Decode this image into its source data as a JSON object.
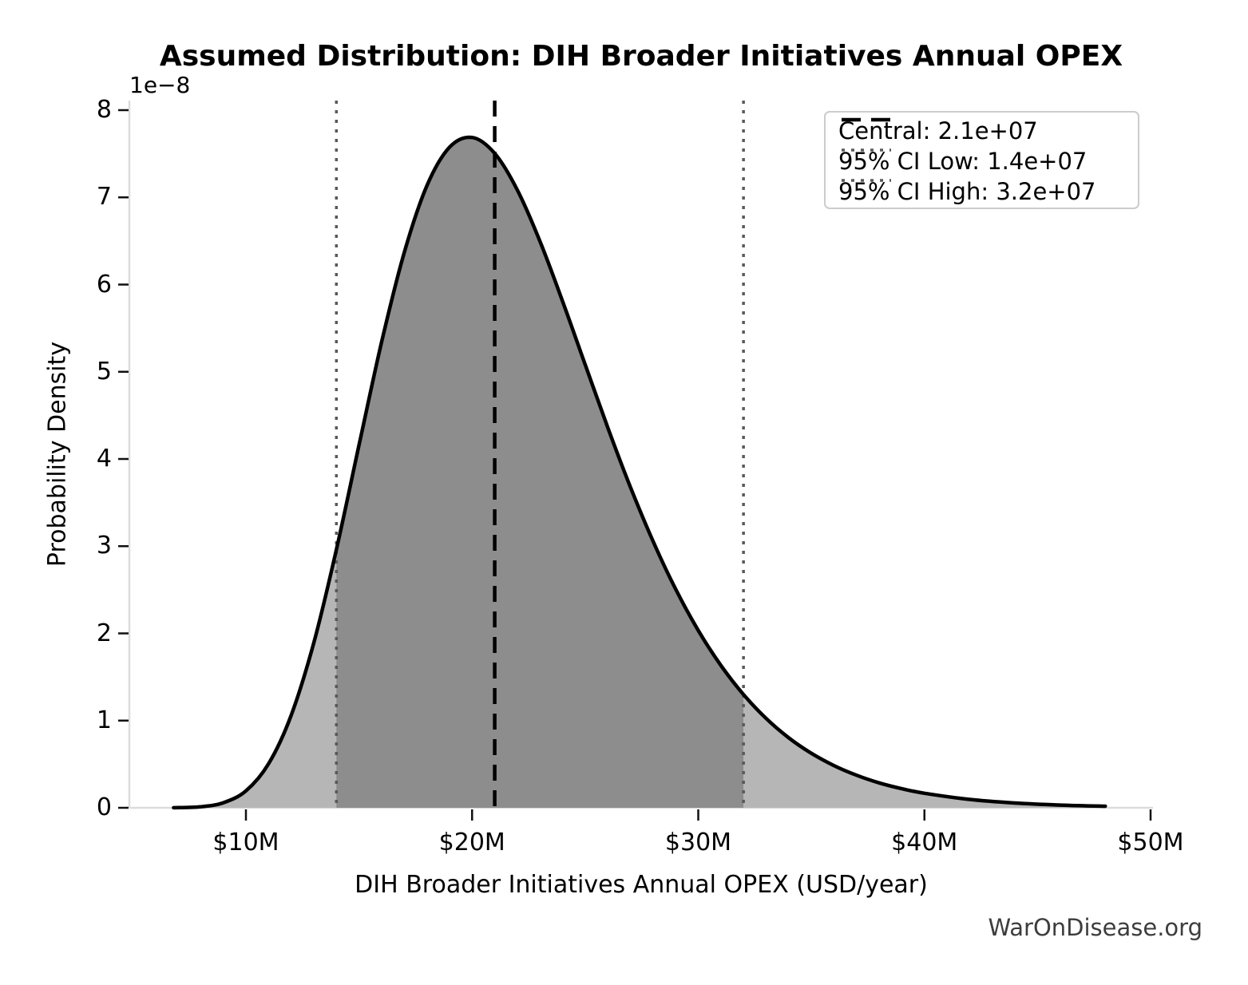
{
  "watermark": {
    "text": "WarOnDisease.org"
  },
  "chart_data": {
    "type": "area",
    "title": "Assumed Distribution: DIH Broader Initiatives Annual OPEX",
    "xlabel": "DIH Broader Initiatives Annual OPEX (USD/year)",
    "ylabel": "Probability Density",
    "y_offset_label": "1e−8",
    "y_unit_multiplier": 1e-08,
    "grid": false,
    "legend_position": "upper right",
    "xlim_musd": [
      4.85,
      50.1
    ],
    "ylim_e8": [
      0,
      8.11
    ],
    "x_ticks": {
      "values_musd": [
        10,
        20,
        30,
        40,
        50
      ],
      "labels": [
        "$10M",
        "$20M",
        "$30M",
        "$40M",
        "$50M"
      ]
    },
    "y_ticks": {
      "values_e8": [
        0,
        1,
        2,
        3,
        4,
        5,
        6,
        7,
        8
      ],
      "labels": [
        "0",
        "1",
        "2",
        "3",
        "4",
        "5",
        "6",
        "7",
        "8"
      ]
    },
    "curve": {
      "distribution": "lognormal",
      "x_musd": [
        6.8,
        8,
        9,
        10,
        11,
        12,
        13,
        14,
        15,
        16,
        17,
        18,
        19,
        20,
        21,
        22,
        23,
        24,
        25,
        26,
        27,
        28,
        29,
        30,
        31,
        32,
        33,
        34,
        35,
        36,
        37,
        38,
        39,
        40,
        42,
        44,
        46,
        48
      ],
      "density_e8": [
        0.001,
        0.012,
        0.058,
        0.194,
        0.504,
        1.059,
        1.891,
        2.961,
        4.158,
        5.341,
        6.367,
        7.132,
        7.574,
        7.687,
        7.504,
        7.085,
        6.497,
        5.81,
        5.082,
        4.36,
        3.678,
        3.057,
        2.508,
        2.034,
        1.633,
        1.299,
        1.025,
        0.803,
        0.625,
        0.484,
        0.373,
        0.286,
        0.219,
        0.167,
        0.096,
        0.055,
        0.031,
        0.018
      ]
    },
    "markers": {
      "central_usd": 21000000.0,
      "ci_low_usd": 14000000.0,
      "ci_high_usd": 32000000.0,
      "ci_region_musd": [
        14,
        32
      ]
    },
    "legend": [
      {
        "label": "Central: 2.1e+07",
        "style": "dashed",
        "color": "#000000"
      },
      {
        "label": "95% CI Low: 1.4e+07",
        "style": "dotted",
        "color": "#595959"
      },
      {
        "label": "95% CI High: 3.2e+07",
        "style": "dotted",
        "color": "#595959"
      }
    ],
    "colors": {
      "curve": "#000000",
      "fill_light": "#b6b6b6",
      "fill_dark": "#8d8d8d",
      "spine": "#dcdcdc",
      "tick": "#111111",
      "central_line": "#000000",
      "ci_line": "#595959"
    }
  }
}
